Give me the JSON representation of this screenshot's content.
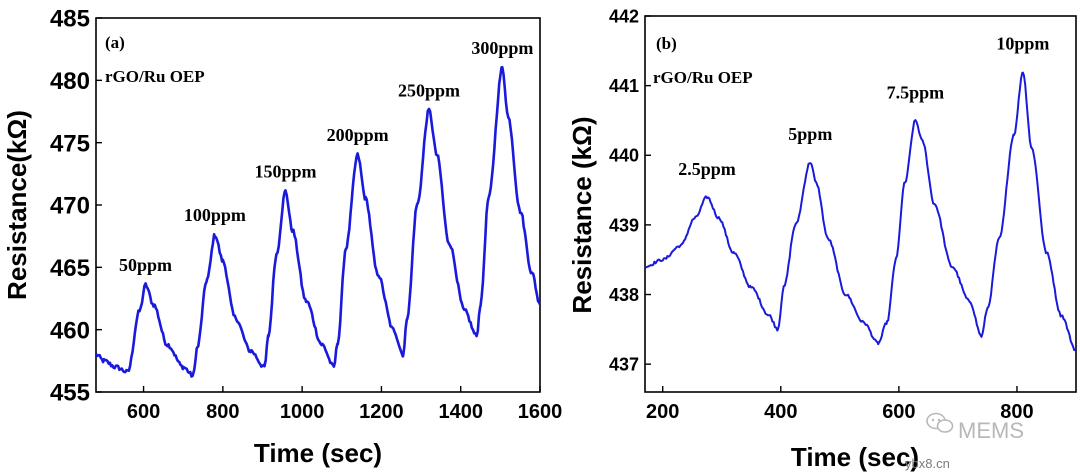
{
  "chart_data": [
    {
      "type": "line",
      "panel_label": "(a)",
      "sample_label": "rGO/Ru OEP",
      "xlabel": "Time (sec)",
      "ylabel": "Resistance(kΩ)",
      "xlim": [
        480,
        1600
      ],
      "ylim": [
        455,
        485
      ],
      "xticks": [
        600,
        800,
        1000,
        1200,
        1400,
        1600
      ],
      "yticks": [
        455,
        460,
        465,
        470,
        475,
        480,
        485
      ],
      "series_color": "#1a1adc",
      "series": [
        {
          "name": "rGO/Ru OEP response",
          "x": [
            480,
            500,
            530,
            560,
            590,
            605,
            625,
            660,
            700,
            725,
            735,
            760,
            780,
            800,
            830,
            870,
            905,
            915,
            935,
            958,
            975,
            1010,
            1050,
            1080,
            1090,
            1110,
            1140,
            1160,
            1190,
            1230,
            1255,
            1265,
            1290,
            1320,
            1340,
            1370,
            1410,
            1440,
            1450,
            1470,
            1505,
            1520,
            1550,
            1580,
            1600
          ],
          "y": [
            458.0,
            457.5,
            457.0,
            456.6,
            461.5,
            463.6,
            462.0,
            458.8,
            457.0,
            456.3,
            458.5,
            464.0,
            467.6,
            465.5,
            461.0,
            458.3,
            457.0,
            459.5,
            466.0,
            471.1,
            468.0,
            462.3,
            458.8,
            457.0,
            459.0,
            466.5,
            474.0,
            470.5,
            464.5,
            460.0,
            458.0,
            461.0,
            470.0,
            477.6,
            474.0,
            467.0,
            461.5,
            459.5,
            462.0,
            470.5,
            481.0,
            477.0,
            469.5,
            464.5,
            462.0
          ]
        }
      ],
      "annotations": [
        {
          "text": "50ppm",
          "x": 605,
          "y": 463.6
        },
        {
          "text": "100ppm",
          "x": 780,
          "y": 467.6
        },
        {
          "text": "150ppm",
          "x": 958,
          "y": 471.1
        },
        {
          "text": "200ppm",
          "x": 1140,
          "y": 474.0
        },
        {
          "text": "250ppm",
          "x": 1320,
          "y": 477.6
        },
        {
          "text": "300ppm",
          "x": 1505,
          "y": 481.0
        }
      ]
    },
    {
      "type": "line",
      "panel_label": "(b)",
      "sample_label": "rGO/Ru OEP",
      "xlabel": "Time (sec)",
      "ylabel": "Resistance (kΩ)",
      "xlim": [
        170,
        900
      ],
      "ylim": [
        436.6,
        442
      ],
      "xticks": [
        200,
        400,
        600,
        800
      ],
      "yticks": [
        437,
        438,
        439,
        440,
        441,
        442
      ],
      "series_color": "#1a1adc",
      "series": [
        {
          "name": "rGO/Ru OEP response",
          "x": [
            170,
            200,
            230,
            255,
            275,
            295,
            320,
            350,
            380,
            395,
            405,
            425,
            450,
            460,
            480,
            510,
            540,
            565,
            580,
            595,
            610,
            628,
            640,
            660,
            690,
            720,
            740,
            750,
            770,
            795,
            810,
            825,
            850,
            875,
            900
          ],
          "y": [
            438.4,
            438.5,
            438.7,
            439.1,
            439.4,
            439.1,
            438.6,
            438.1,
            437.7,
            437.5,
            438.1,
            439.0,
            439.9,
            439.6,
            438.8,
            438.0,
            437.6,
            437.3,
            437.6,
            438.5,
            439.6,
            440.5,
            440.2,
            439.3,
            438.4,
            437.9,
            437.4,
            437.8,
            438.8,
            440.3,
            441.2,
            440.1,
            438.6,
            437.7,
            437.2
          ]
        }
      ],
      "annotations": [
        {
          "text": "2.5ppm",
          "x": 275,
          "y": 439.4
        },
        {
          "text": "5ppm",
          "x": 450,
          "y": 439.9
        },
        {
          "text": "7.5ppm",
          "x": 628,
          "y": 440.5
        },
        {
          "text": "10ppm",
          "x": 810,
          "y": 441.2
        }
      ]
    }
  ],
  "watermark": {
    "logo_text": "MEMS",
    "site_text": "ybx8.cn"
  }
}
